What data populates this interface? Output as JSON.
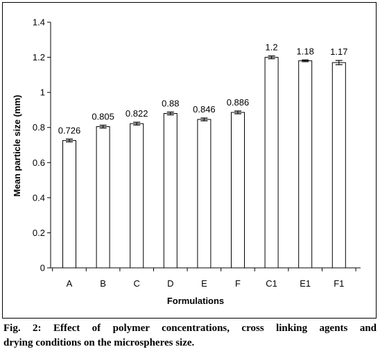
{
  "chart_data": {
    "type": "bar",
    "categories": [
      "A",
      "B",
      "C",
      "D",
      "E",
      "F",
      "C1",
      "E1",
      "F1"
    ],
    "values": [
      0.726,
      0.805,
      0.822,
      0.88,
      0.846,
      0.886,
      1.2,
      1.18,
      1.17
    ],
    "data_labels": [
      "0.726",
      "0.805",
      "0.822",
      "0.88",
      "0.846",
      "0.886",
      "1.2",
      "1.18",
      "1.17"
    ],
    "error": [
      0.008,
      0.008,
      0.008,
      0.008,
      0.008,
      0.008,
      0.008,
      0.005,
      0.012
    ],
    "xlabel": "Formulations",
    "ylabel": "Mean particle size (mm)",
    "ylim": [
      0,
      1.4
    ],
    "yticks": [
      0,
      0.2,
      0.4,
      0.6,
      0.8,
      1,
      1.2,
      1.4
    ],
    "ytick_labels": [
      "0",
      "0.2",
      "0.4",
      "0.6",
      "0.8",
      "1",
      "1.2",
      "1.4"
    ],
    "grid": false,
    "legend": "none",
    "bar_fill": "#ffffff",
    "bar_stroke": "#000000"
  },
  "caption": {
    "line1": "Fig. 2: Effect of polymer concentrations, cross linking agents and",
    "line2": "drying conditions on the microspheres size."
  }
}
